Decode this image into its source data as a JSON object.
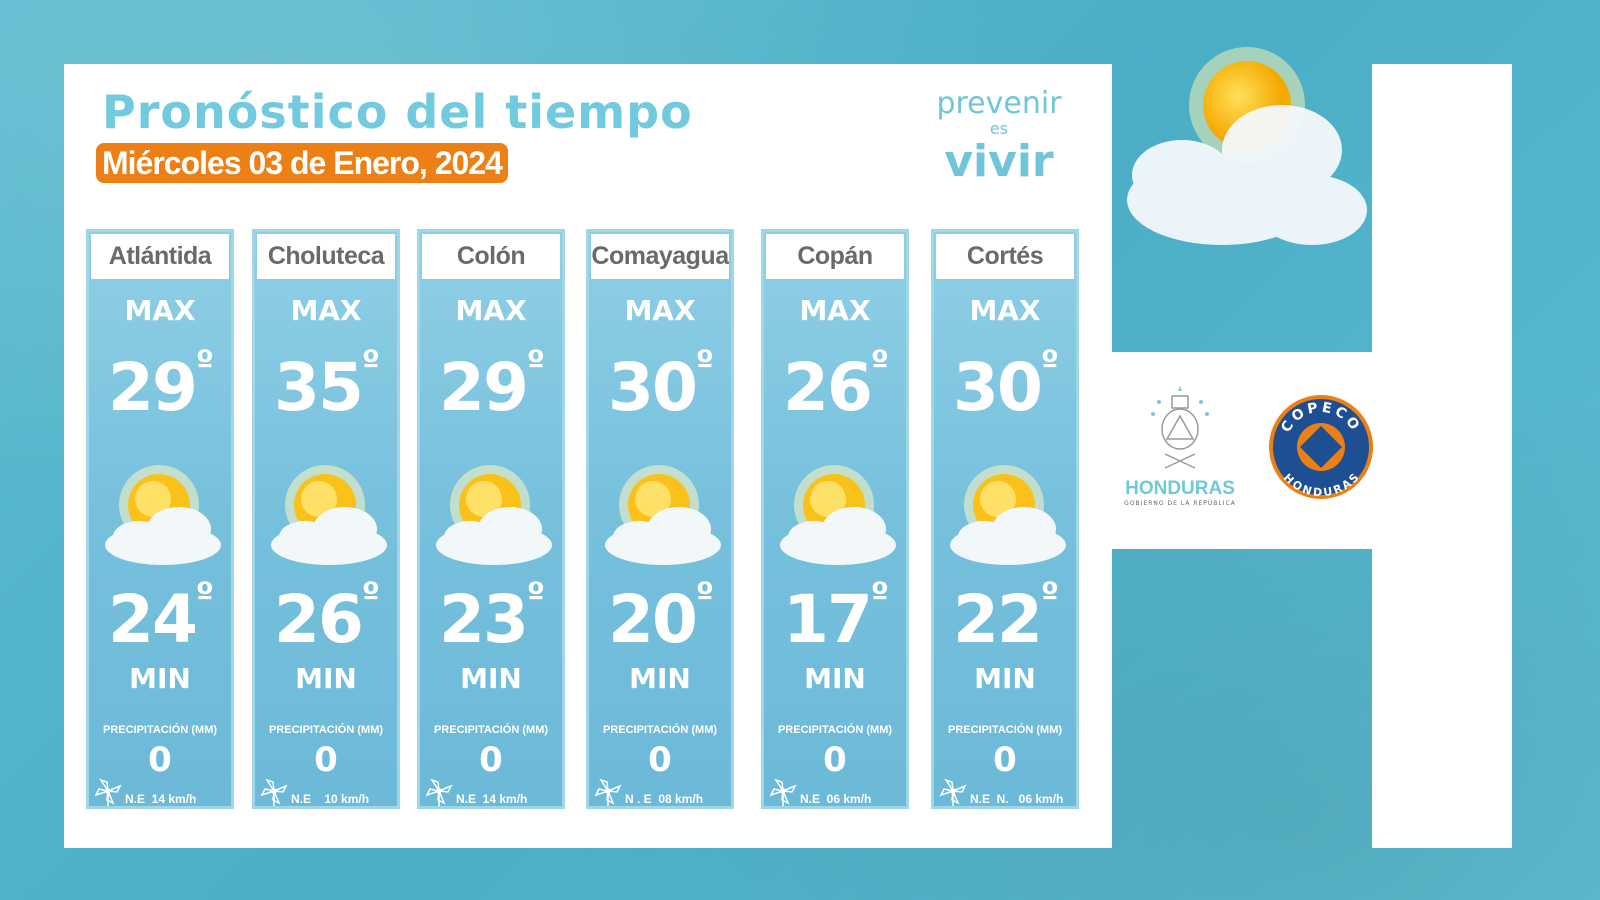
{
  "header": {
    "title": "Pronóstico del tiempo",
    "date": "Miércoles 03 de Enero, 2024"
  },
  "slogan": {
    "line1": "prevenir",
    "line2": "es",
    "line3": "vivir"
  },
  "labels": {
    "max": "MAX",
    "min": "MIN",
    "precipitation": "PRECIPITACIÓN (MM)",
    "degree": "º"
  },
  "forecasts": [
    {
      "department": "Atlántida",
      "max": "29",
      "min": "24",
      "precipitation": "0",
      "wind": "N.E  14 km/h",
      "icon": "partly-sunny-icon"
    },
    {
      "department": "Choluteca",
      "max": "35",
      "min": "26",
      "precipitation": "0",
      "wind": "N.E    10 km/h",
      "icon": "partly-sunny-icon"
    },
    {
      "department": "Colón",
      "max": "29",
      "min": "23",
      "precipitation": "0",
      "wind": "N.E  14 km/h",
      "icon": "partly-sunny-icon"
    },
    {
      "department": "Comayagua",
      "max": "30",
      "min": "20",
      "precipitation": "0",
      "wind": "N . E  08 km/h",
      "icon": "partly-sunny-icon"
    },
    {
      "department": "Copán",
      "max": "26",
      "min": "17",
      "precipitation": "0",
      "wind": "N.E  06 km/h",
      "icon": "partly-sunny-icon"
    },
    {
      "department": "Cortés",
      "max": "30",
      "min": "22",
      "precipitation": "0",
      "wind": "N.E  N.   06 km/h",
      "icon": "partly-sunny-icon"
    }
  ],
  "logos": {
    "honduras": "HONDURAS",
    "honduras_sub": "GOBIERNO DE LA REPÚBLICA",
    "copeco_top": "COPECO",
    "copeco_bottom": "HONDURAS"
  },
  "colors": {
    "background": "#58b6cb",
    "title": "#72cade",
    "date_badge": "#ec7f16",
    "card": "#7ec4de",
    "copeco_blue": "#1f4f93",
    "copeco_orange": "#ec7f16"
  }
}
